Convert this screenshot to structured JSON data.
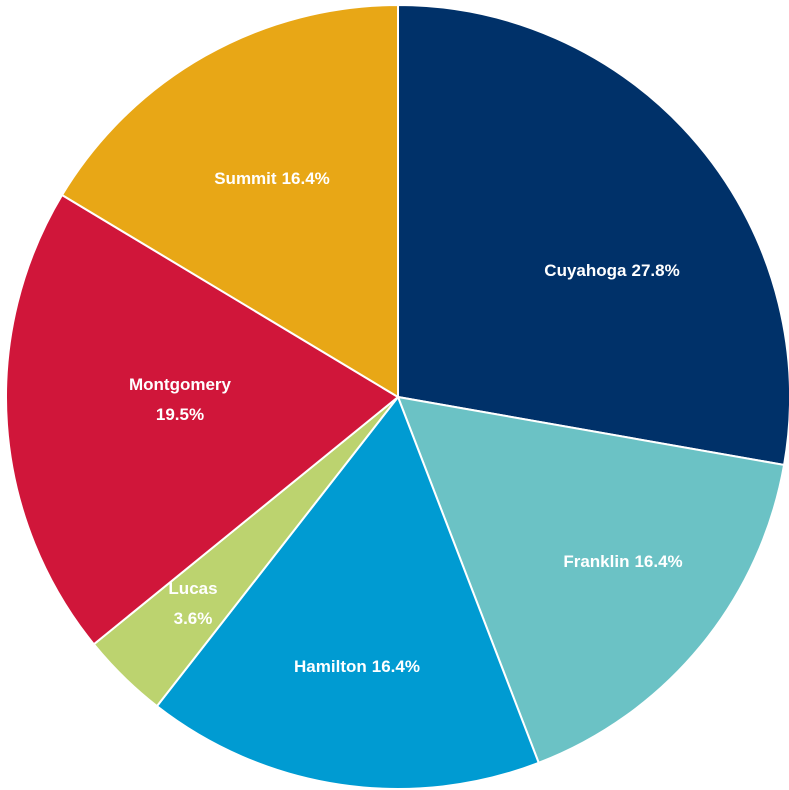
{
  "chart_data": {
    "type": "pie",
    "categories": [
      "Cuyahoga",
      "Franklin",
      "Hamilton",
      "Lucas",
      "Montgomery",
      "Summit"
    ],
    "values": [
      27.8,
      16.4,
      16.4,
      3.6,
      19.5,
      16.4
    ],
    "value_labels": [
      "27.8%",
      "16.4%",
      "16.4%",
      "3.6%",
      "19.5%",
      "16.4%"
    ],
    "colors": [
      "#003169",
      "#6bc2c5",
      "#009bd2",
      "#bcd36f",
      "#d0163a",
      "#e8a716"
    ]
  }
}
